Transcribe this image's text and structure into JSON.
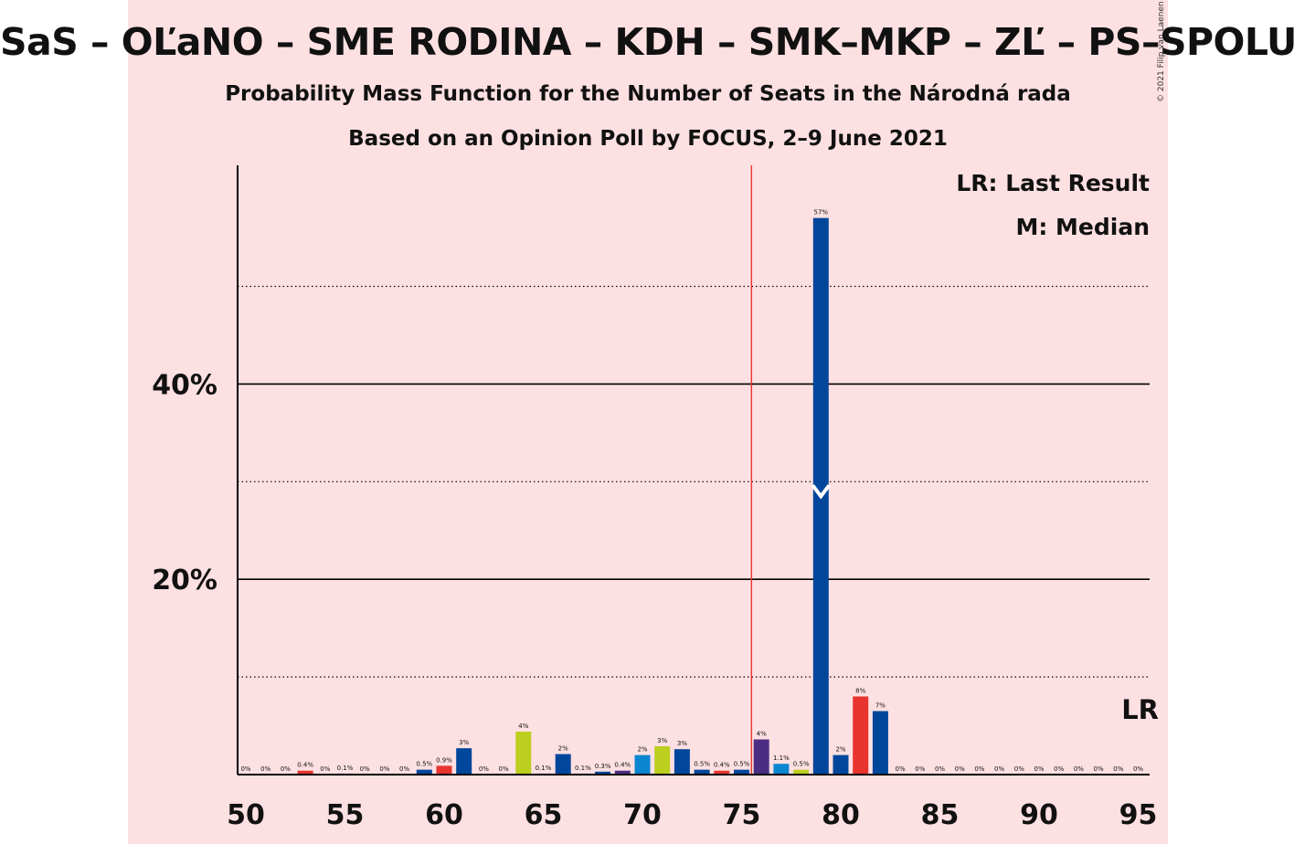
{
  "header": {
    "title": "SaS – OĽaNO – SME RODINA – KDH – SMK–MKP – ZĽ – PS–SPOLU",
    "subtitle": "Probability Mass Function for the Number of Seats in the Národná rada",
    "subtitle2": "Based on an Opinion Poll by FOCUS, 2–9 June 2021",
    "copyright": "© 2021 Filip van Laenen"
  },
  "colors": {
    "background": "#fde0e2",
    "majority_line": "#e8342e",
    "median_marker": "#ffffff",
    "axis": "#000000"
  },
  "legend": {
    "last_result": "LR: Last Result",
    "median": "M: Median"
  },
  "chart_data": {
    "type": "bar",
    "title": "SaS – OĽaNO – SME RODINA – KDH – SMK–MKP – ZĽ – PS–SPOLU",
    "xlabel": "",
    "ylabel": "",
    "xlim": [
      50,
      95
    ],
    "ylim": [
      0,
      62
    ],
    "x_ticks": [
      50,
      55,
      60,
      65,
      70,
      75,
      80,
      85,
      90,
      95
    ],
    "y_ticks": [
      {
        "value": 20,
        "label": "20%"
      },
      {
        "value": 40,
        "label": "40%"
      }
    ],
    "gridlines_solid": [
      20,
      40
    ],
    "gridlines_dotted": [
      10,
      30,
      50
    ],
    "majority_threshold_x": 75.5,
    "median_seat": 79,
    "last_result_seat": 95,
    "last_result_label": "LR",
    "bars": [
      {
        "seat": 50,
        "value": 0,
        "label": "0%",
        "color": "#003f8a"
      },
      {
        "seat": 51,
        "value": 0,
        "label": "0%",
        "color": "#003f8a"
      },
      {
        "seat": 52,
        "value": 0,
        "label": "0%",
        "color": "#003f8a"
      },
      {
        "seat": 53,
        "value": 0.4,
        "label": "0.4%",
        "color": "#e8342e"
      },
      {
        "seat": 54,
        "value": 0,
        "label": "0%",
        "color": "#003f8a"
      },
      {
        "seat": 55,
        "value": 0.1,
        "label": "0.1%",
        "color": "#003f8a"
      },
      {
        "seat": 56,
        "value": 0,
        "label": "0%",
        "color": "#003f8a"
      },
      {
        "seat": 57,
        "value": 0,
        "label": "0%",
        "color": "#003f8a"
      },
      {
        "seat": 58,
        "value": 0,
        "label": "0%",
        "color": "#003f8a"
      },
      {
        "seat": 59,
        "value": 0.5,
        "label": "0.5%",
        "color": "#00479b"
      },
      {
        "seat": 60,
        "value": 0.9,
        "label": "0.9%",
        "color": "#e8342e"
      },
      {
        "seat": 61,
        "value": 2.7,
        "label": "3%",
        "color": "#00479b"
      },
      {
        "seat": 62,
        "value": 0,
        "label": "0%",
        "color": "#003f8a"
      },
      {
        "seat": 63,
        "value": 0,
        "label": "0%",
        "color": "#003f8a"
      },
      {
        "seat": 64,
        "value": 4.4,
        "label": "4%",
        "color": "#bccf1f"
      },
      {
        "seat": 65,
        "value": 0.1,
        "label": "0.1%",
        "color": "#003f8a"
      },
      {
        "seat": 66,
        "value": 2.1,
        "label": "2%",
        "color": "#00479b"
      },
      {
        "seat": 67,
        "value": 0.1,
        "label": "0.1%",
        "color": "#003f8a"
      },
      {
        "seat": 68,
        "value": 0.3,
        "label": "0.3%",
        "color": "#00479b"
      },
      {
        "seat": 69,
        "value": 0.4,
        "label": "0.4%",
        "color": "#4b2e83"
      },
      {
        "seat": 70,
        "value": 2.0,
        "label": "2%",
        "color": "#0a85d0"
      },
      {
        "seat": 71,
        "value": 2.9,
        "label": "3%",
        "color": "#bccf1f"
      },
      {
        "seat": 72,
        "value": 2.6,
        "label": "3%",
        "color": "#00479b"
      },
      {
        "seat": 73,
        "value": 0.5,
        "label": "0.5%",
        "color": "#00479b"
      },
      {
        "seat": 74,
        "value": 0.4,
        "label": "0.4%",
        "color": "#e8342e"
      },
      {
        "seat": 75,
        "value": 0.5,
        "label": "0.5%",
        "color": "#00479b"
      },
      {
        "seat": 76,
        "value": 3.6,
        "label": "4%",
        "color": "#4b2e83"
      },
      {
        "seat": 77,
        "value": 1.1,
        "label": "1.1%",
        "color": "#0a85d0"
      },
      {
        "seat": 78,
        "value": 0.5,
        "label": "0.5%",
        "color": "#bccf1f"
      },
      {
        "seat": 79,
        "value": 57,
        "label": "57%",
        "color": "#00479b"
      },
      {
        "seat": 80,
        "value": 2.0,
        "label": "2%",
        "color": "#00479b"
      },
      {
        "seat": 81,
        "value": 8.0,
        "label": "8%",
        "color": "#e8342e"
      },
      {
        "seat": 82,
        "value": 6.5,
        "label": "7%",
        "color": "#00479b"
      },
      {
        "seat": 83,
        "value": 0,
        "label": "0%",
        "color": "#003f8a"
      },
      {
        "seat": 84,
        "value": 0,
        "label": "0%",
        "color": "#003f8a"
      },
      {
        "seat": 85,
        "value": 0,
        "label": "0%",
        "color": "#003f8a"
      },
      {
        "seat": 86,
        "value": 0,
        "label": "0%",
        "color": "#003f8a"
      },
      {
        "seat": 87,
        "value": 0,
        "label": "0%",
        "color": "#003f8a"
      },
      {
        "seat": 88,
        "value": 0,
        "label": "0%",
        "color": "#003f8a"
      },
      {
        "seat": 89,
        "value": 0,
        "label": "0%",
        "color": "#003f8a"
      },
      {
        "seat": 90,
        "value": 0,
        "label": "0%",
        "color": "#003f8a"
      },
      {
        "seat": 91,
        "value": 0,
        "label": "0%",
        "color": "#003f8a"
      },
      {
        "seat": 92,
        "value": 0,
        "label": "0%",
        "color": "#003f8a"
      },
      {
        "seat": 93,
        "value": 0,
        "label": "0%",
        "color": "#003f8a"
      },
      {
        "seat": 94,
        "value": 0,
        "label": "0%",
        "color": "#003f8a"
      },
      {
        "seat": 95,
        "value": 0,
        "label": "0%",
        "color": "#003f8a"
      }
    ]
  }
}
